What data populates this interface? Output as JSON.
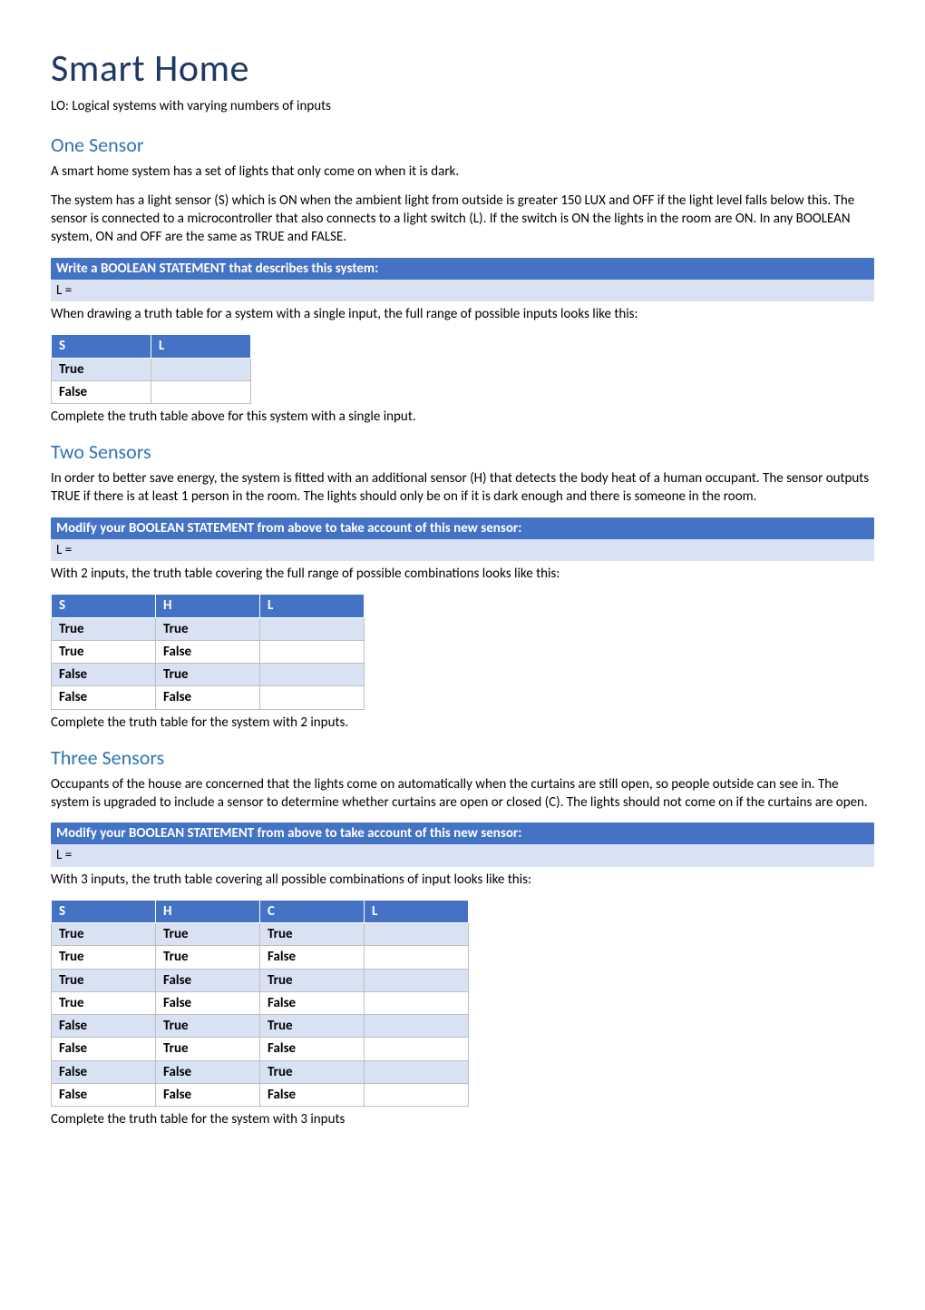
{
  "title": "Smart Home",
  "lo": "LO: Logical systems with varying numbers of inputs",
  "colors": {
    "heading_dark": "#1f3864",
    "heading_blue": "#2e74b5",
    "bar_bg": "#4472c4",
    "bar_text": "#ffffff",
    "answer_bg": "#d9e2f3",
    "cell_shaded": "#d9e2f3",
    "cell_border": "#bfbfbf",
    "body_text": "#000000"
  },
  "section1": {
    "heading": "One Sensor",
    "p1": "A smart home system has a set of lights that only come on when it is dark.",
    "p2": "The system has a light sensor (S) which is ON when the ambient light from outside is greater 150 LUX and OFF if the light level falls below this. The sensor is connected to a microcontroller that also connects to a light switch (L). If the switch is ON the lights in the room are ON. In any BOOLEAN system, ON and OFF are the same as TRUE and FALSE.",
    "bar": "Write a BOOLEAN STATEMENT that describes this system:",
    "answer": "L =",
    "afterBar": "When drawing a truth table for a system with a single input, the full range of possible inputs looks like this:",
    "table": {
      "headers": [
        "S",
        "L"
      ],
      "rows": [
        {
          "cells": [
            "True",
            ""
          ],
          "shaded": true
        },
        {
          "cells": [
            "False",
            ""
          ],
          "shaded": false
        }
      ]
    },
    "afterTable": "Complete the truth table above for this system with a single input."
  },
  "section2": {
    "heading": "Two Sensors",
    "p1": "In order to better save energy, the system is fitted with an additional sensor (H) that detects the body heat of a human occupant. The sensor outputs TRUE if there is at least 1 person in the room. The lights should only be on if it is dark enough and there is someone in the room.",
    "bar": "Modify your BOOLEAN STATEMENT from above to take account of this new sensor:",
    "answer": "L =",
    "afterBar": "With 2 inputs, the truth table covering the full range of possible combinations looks like this:",
    "table": {
      "headers": [
        "S",
        "H",
        "L"
      ],
      "rows": [
        {
          "cells": [
            "True",
            "True",
            ""
          ],
          "shaded": true
        },
        {
          "cells": [
            "True",
            "False",
            ""
          ],
          "shaded": false
        },
        {
          "cells": [
            "False",
            "True",
            ""
          ],
          "shaded": true
        },
        {
          "cells": [
            "False",
            "False",
            ""
          ],
          "shaded": false
        }
      ]
    },
    "afterTable": "Complete the truth table for the system with 2 inputs."
  },
  "section3": {
    "heading": "Three Sensors",
    "p1": "Occupants of the house are concerned that the lights come on automatically when the curtains are still open, so people outside can see in. The system is upgraded to include a sensor to determine whether curtains are open or closed (C). The lights should not come on if the curtains are open.",
    "bar": "Modify your BOOLEAN STATEMENT from above to take account of this new sensor:",
    "answer": "L =",
    "afterBar": "With 3 inputs, the truth table covering all possible combinations of input looks like this:",
    "table": {
      "headers": [
        "S",
        "H",
        "C",
        "L"
      ],
      "rows": [
        {
          "cells": [
            "True",
            "True",
            "True",
            ""
          ],
          "shaded": true
        },
        {
          "cells": [
            "True",
            "True",
            "False",
            ""
          ],
          "shaded": false
        },
        {
          "cells": [
            "True",
            "False",
            "True",
            ""
          ],
          "shaded": true
        },
        {
          "cells": [
            "True",
            "False",
            "False",
            ""
          ],
          "shaded": false
        },
        {
          "cells": [
            "False",
            "True",
            "True",
            ""
          ],
          "shaded": true
        },
        {
          "cells": [
            "False",
            "True",
            "False",
            ""
          ],
          "shaded": false
        },
        {
          "cells": [
            "False",
            "False",
            "True",
            ""
          ],
          "shaded": true
        },
        {
          "cells": [
            "False",
            "False",
            "False",
            ""
          ],
          "shaded": false
        }
      ]
    },
    "afterTable": "Complete the truth table for the system with 3 inputs"
  }
}
